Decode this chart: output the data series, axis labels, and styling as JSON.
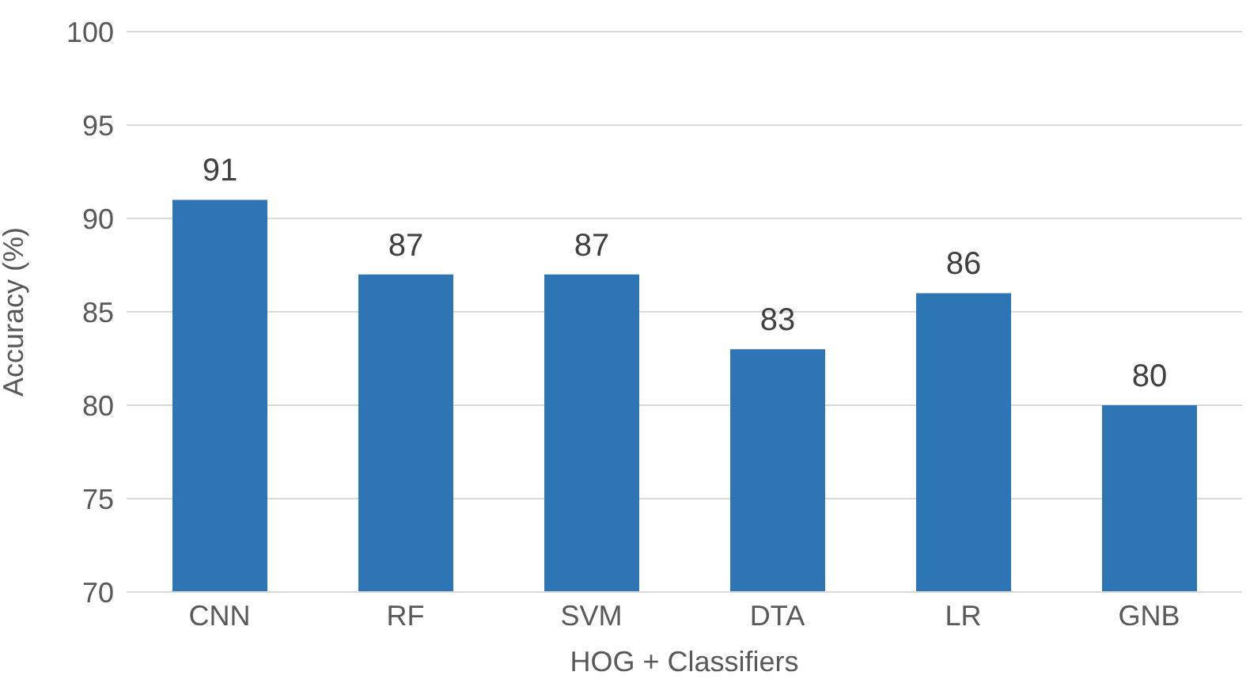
{
  "chart_data": {
    "type": "bar",
    "xlabel": "HOG + Classifiers",
    "ylabel": "Accuracy (%)",
    "categories": [
      "CNN",
      "RF",
      "SVM",
      "DTA",
      "LR",
      "GNB"
    ],
    "values": [
      91,
      87,
      87,
      83,
      86,
      80
    ],
    "color": "#2e75b6",
    "ylim": [
      70,
      100
    ],
    "yticks": [
      70,
      75,
      80,
      85,
      90,
      95,
      100
    ],
    "grid": "y",
    "data_labels": true
  }
}
